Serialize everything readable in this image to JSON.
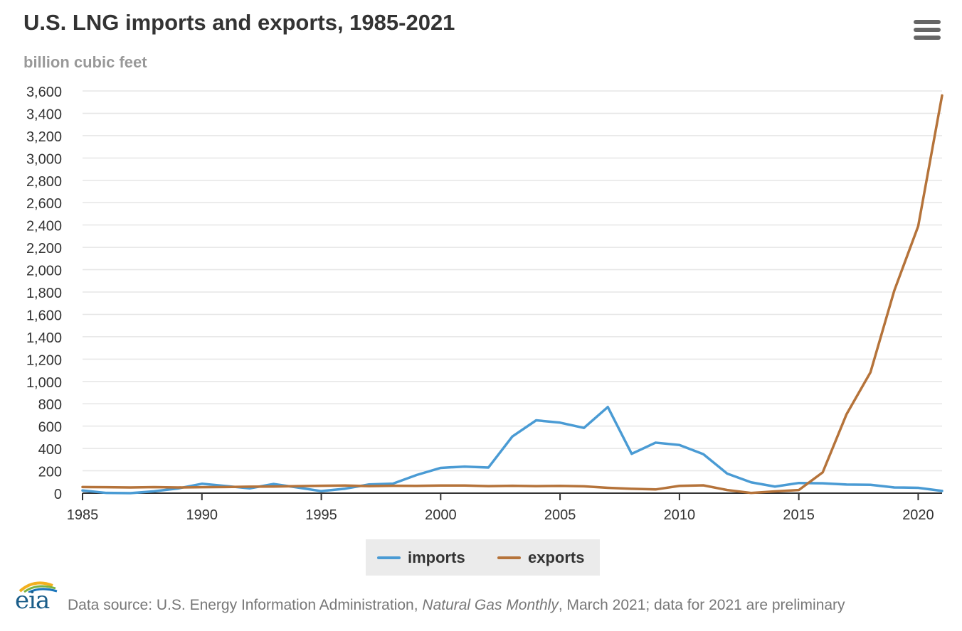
{
  "header": {
    "title": "U.S. LNG imports and exports, 1985-2021",
    "subtitle": "billion cubic feet",
    "menu_icon": "hamburger-menu-icon"
  },
  "footer": {
    "source_prefix": "Data source: U.S. Energy Information Administration, ",
    "source_publication": "Natural Gas Monthly",
    "source_suffix": ", March 2021; data for 2021 are preliminary",
    "logo_text": "eia"
  },
  "legend": {
    "imports_label": "imports",
    "exports_label": "exports"
  },
  "colors": {
    "imports": "#4a9bd4",
    "exports": "#b5733a",
    "grid": "#e6e6e6",
    "axis": "#333333"
  },
  "chart_data": {
    "type": "line",
    "title": "U.S. LNG imports and exports, 1985-2021",
    "subtitle": "billion cubic feet",
    "ylim": [
      0,
      3600
    ],
    "xlim": [
      1985,
      2021
    ],
    "y_ticks": [
      "0",
      "200",
      "400",
      "600",
      "800",
      "1,000",
      "1,200",
      "1,400",
      "1,600",
      "1,800",
      "2,000",
      "2,200",
      "2,400",
      "2,600",
      "2,800",
      "3,000",
      "3,200",
      "3,400",
      "3,600"
    ],
    "x_ticks": [
      "1985",
      "1990",
      "1995",
      "2000",
      "2005",
      "2010",
      "2015",
      "2020"
    ],
    "grid": true,
    "legend_position": "bottom-center",
    "x": [
      1985,
      1986,
      1987,
      1988,
      1989,
      1990,
      1991,
      1992,
      1993,
      1994,
      1995,
      1996,
      1997,
      1998,
      1999,
      2000,
      2001,
      2002,
      2003,
      2004,
      2005,
      2006,
      2007,
      2008,
      2009,
      2010,
      2011,
      2012,
      2013,
      2014,
      2015,
      2016,
      2017,
      2018,
      2019,
      2020,
      2021
    ],
    "series": [
      {
        "name": "imports",
        "values": [
          24,
          2,
          0,
          17,
          42,
          84,
          64,
          43,
          82,
          51,
          18,
          40,
          78,
          85,
          163,
          226,
          238,
          229,
          507,
          652,
          631,
          584,
          771,
          352,
          452,
          431,
          349,
          175,
          97,
          59,
          91,
          88,
          77,
          75,
          51,
          48,
          20
        ]
      },
      {
        "name": "exports",
        "values": [
          55,
          53,
          51,
          54,
          51,
          53,
          55,
          58,
          59,
          63,
          66,
          68,
          63,
          66,
          65,
          68,
          68,
          63,
          66,
          63,
          65,
          61,
          48,
          39,
          33,
          65,
          70,
          28,
          2,
          16,
          28,
          186,
          707,
          1081,
          1814,
          2390,
          3560
        ]
      }
    ]
  }
}
